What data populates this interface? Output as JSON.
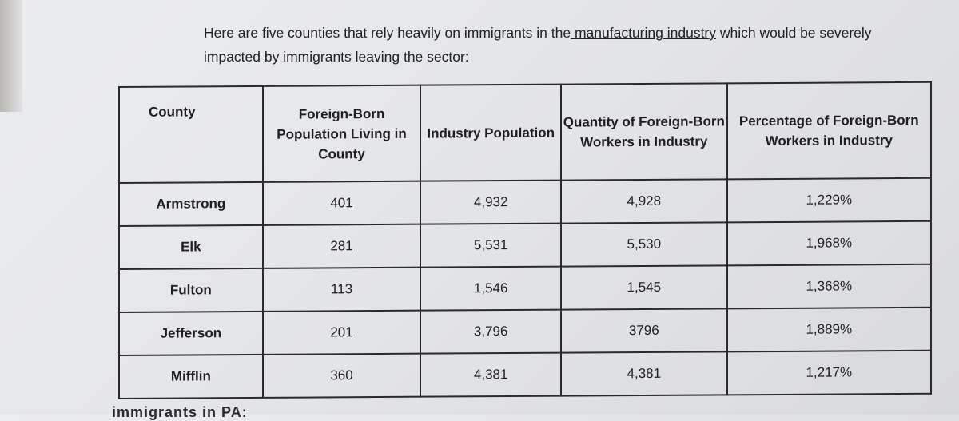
{
  "intro": {
    "before": "Here are five counties that rely heavily on immigrants in the",
    "underlined": " manufacturing industry",
    "after": " which would be severely impacted by immigrants leaving the sector:"
  },
  "table": {
    "headers": [
      "County",
      "Foreign-Born Population Living in County",
      "Industry Population",
      "Quantity of Foreign-Born Workers in Industry",
      "Percentage of Foreign-Born Workers in Industry"
    ],
    "rows": [
      [
        "Armstrong",
        "401",
        "4,932",
        "4,928",
        "1,229%"
      ],
      [
        "Elk",
        "281",
        "5,531",
        "5,530",
        "1,968%"
      ],
      [
        "Fulton",
        "113",
        "1,546",
        "1,545",
        "1,368%"
      ],
      [
        "Jefferson",
        "201",
        "3,796",
        "3796",
        "1,889%"
      ],
      [
        "Mifflin",
        "360",
        "4,381",
        "4,381",
        "1,217%"
      ]
    ]
  },
  "bottom_fragment": "immigrants in PA:"
}
